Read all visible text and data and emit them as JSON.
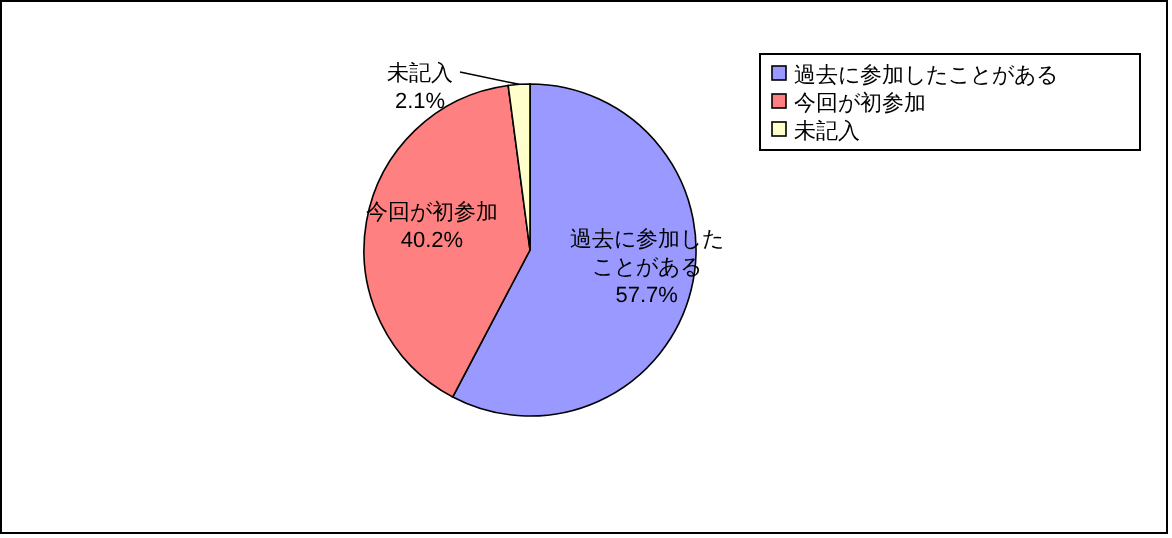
{
  "chart_data": {
    "type": "pie",
    "categories": [
      "過去に参加したことがある",
      "今回が初参加",
      "未記入"
    ],
    "values": [
      57.7,
      40.2,
      2.1
    ],
    "colors": [
      "#9999ff",
      "#ff8080",
      "#ffffcc"
    ],
    "value_labels": [
      "57.7%",
      "40.2%",
      "2.1%"
    ],
    "legend": "top right"
  }
}
